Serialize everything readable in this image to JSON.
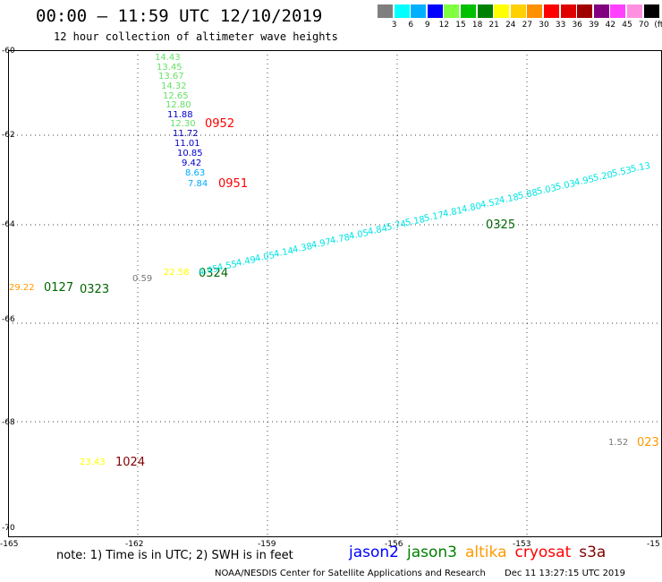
{
  "title": "00:00 – 11:59 UTC 12/10/2019",
  "subtitle": "12 hour collection of altimeter wave heights",
  "color_scale": {
    "colors": [
      "#7f7f7f",
      "#00ffff",
      "#00b0ff",
      "#0000ff",
      "#80ff40",
      "#00c000",
      "#008000",
      "#ffff00",
      "#ffd000",
      "#ff9000",
      "#ff0000",
      "#e00000",
      "#a00000",
      "#800080",
      "#ff40ff",
      "#ff90e0",
      "#000000"
    ],
    "ticks": [
      "3",
      "6",
      "9",
      "12",
      "15",
      "18",
      "21",
      "24",
      "27",
      "30",
      "33",
      "36",
      "39",
      "42",
      "45",
      "70",
      "(ft)"
    ]
  },
  "axes": {
    "lat_labels": [
      "-60",
      "-62",
      "-64",
      "-66",
      "-68",
      "-70"
    ],
    "lon_labels": [
      "-165",
      "-162",
      "-159",
      "-156",
      "-153",
      "-15"
    ]
  },
  "points": [
    {
      "text": "14.43",
      "color": "#66e066"
    },
    {
      "text": "13.45",
      "color": "#66e066"
    },
    {
      "text": "13.67",
      "color": "#66e066"
    },
    {
      "text": "14.32",
      "color": "#66e066"
    },
    {
      "text": "12.65",
      "color": "#66e066"
    },
    {
      "text": "12.80",
      "color": "#66e066"
    },
    {
      "text": "11.88",
      "color": "#0000cc"
    },
    {
      "text": "12.30",
      "color": "#66e066"
    },
    {
      "text": "11.72",
      "color": "#0000aa"
    },
    {
      "text": "11.01",
      "color": "#0000cc"
    },
    {
      "text": "10.85",
      "color": "#0000cc"
    },
    {
      "text": "9.42",
      "color": "#0000cc"
    },
    {
      "text": "8.63",
      "color": "#00aaff"
    },
    {
      "text": "7.84",
      "color": "#00aaff"
    },
    {
      "text": "0952",
      "color": "#ff0000"
    },
    {
      "text": "0951",
      "color": "#ff0000"
    },
    {
      "text": "0325",
      "color": "#006600"
    },
    {
      "text": "0324",
      "color": "#006600"
    },
    {
      "text": "29.22",
      "color": "#ff9900"
    },
    {
      "text": "0127",
      "color": "#006600"
    },
    {
      "text": "0323",
      "color": "#006600"
    },
    {
      "text": "0.59",
      "color": "#777777"
    },
    {
      "text": "22.58",
      "color": "#ffff00"
    },
    {
      "text": "23.43",
      "color": "#ffff00"
    },
    {
      "text": "1024",
      "color": "#800000"
    },
    {
      "text": "1.52",
      "color": "#777777"
    },
    {
      "text": "023",
      "color": "#ff9900"
    },
    {
      "text": "4.45",
      "color": "#00e5e5"
    },
    {
      "text": "4.55",
      "color": "#00e5e5"
    },
    {
      "text": "4.49",
      "color": "#00e5e5"
    },
    {
      "text": "4.05",
      "color": "#00e5e5"
    },
    {
      "text": "4.14",
      "color": "#00e5e5"
    },
    {
      "text": "4.38",
      "color": "#00e5e5"
    },
    {
      "text": "4.97",
      "color": "#00e5e5"
    },
    {
      "text": "4.78",
      "color": "#00e5e5"
    },
    {
      "text": "4.05",
      "color": "#00e5e5"
    },
    {
      "text": "4.84",
      "color": "#00e5e5"
    },
    {
      "text": "5.74",
      "color": "#00e5e5"
    },
    {
      "text": "5.18",
      "color": "#00e5e5"
    },
    {
      "text": "5.17",
      "color": "#00e5e5"
    },
    {
      "text": "4.81",
      "color": "#00e5e5"
    },
    {
      "text": "4.80",
      "color": "#00e5e5"
    },
    {
      "text": "4.52",
      "color": "#00e5e5"
    },
    {
      "text": "4.18",
      "color": "#00e5e5"
    },
    {
      "text": "5.88",
      "color": "#00e5e5"
    },
    {
      "text": "5.03",
      "color": "#00e5e5"
    },
    {
      "text": "5.03",
      "color": "#00e5e5"
    },
    {
      "text": "4.95",
      "color": "#00e5e5"
    },
    {
      "text": "5.20",
      "color": "#00e5e5"
    },
    {
      "text": "5.53",
      "color": "#00e5e5"
    },
    {
      "text": "5.13",
      "color": "#00e5e5"
    }
  ],
  "note": "note: 1) Time is in UTC; 2) SWH is in feet",
  "legend": [
    {
      "name": "jason2",
      "color": "#0000ff"
    },
    {
      "name": "jason3",
      "color": "#008000"
    },
    {
      "name": "altika",
      "color": "#ff9900"
    },
    {
      "name": "cryosat",
      "color": "#ff0000"
    },
    {
      "name": "s3a",
      "color": "#800000"
    }
  ],
  "footer": {
    "credit": "NOAA/NESDIS Center for Satellite Applications and Research",
    "timestamp": "Dec 11 13:27:15 UTC 2019"
  }
}
